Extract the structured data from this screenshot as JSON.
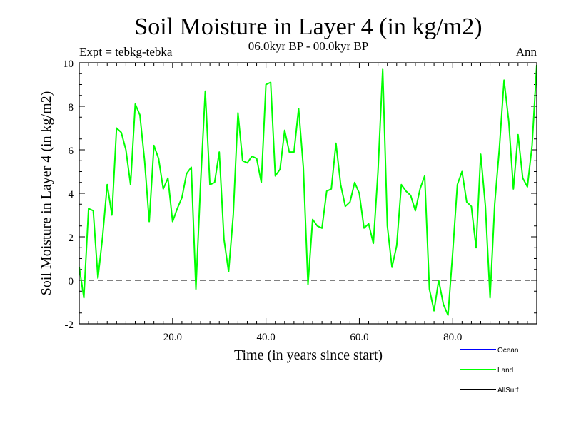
{
  "chart_data": {
    "type": "line",
    "title": "Soil Moisture in Layer 4 (in kg/m2)",
    "subtitle": "06.0kyr BP - 00.0kyr BP",
    "expt_label": "Expt = tebkg-tebka",
    "season_label": "Ann",
    "xlabel": "Time (in years since start)",
    "ylabel": "Soil Moisture in Layer 4 (in kg/m2)",
    "xlim": [
      0,
      98
    ],
    "ylim": [
      -2,
      10
    ],
    "x_ticks": [
      20,
      40,
      60,
      80
    ],
    "x_tick_labels": [
      "20.0",
      "40.0",
      "60.0",
      "80.0"
    ],
    "y_ticks": [
      -2,
      0,
      2,
      4,
      6,
      8,
      10
    ],
    "y_tick_labels": [
      "-2",
      "0",
      "2",
      "4",
      "6",
      "8",
      "10"
    ],
    "reference_line": 0,
    "legend": [
      {
        "name": "Ocean",
        "color": "#0000ff"
      },
      {
        "name": "Land",
        "color": "#00ff00"
      },
      {
        "name": "AllSurf",
        "color": "#000000"
      }
    ],
    "series": [
      {
        "name": "Land",
        "color": "#00ff00",
        "x": [
          0,
          1,
          2,
          3,
          4,
          5,
          6,
          7,
          8,
          9,
          10,
          11,
          12,
          13,
          14,
          15,
          16,
          17,
          18,
          19,
          20,
          21,
          22,
          23,
          24,
          25,
          26,
          27,
          28,
          29,
          30,
          31,
          32,
          33,
          34,
          35,
          36,
          37,
          38,
          39,
          40,
          41,
          42,
          43,
          44,
          45,
          46,
          47,
          48,
          49,
          50,
          51,
          52,
          53,
          54,
          55,
          56,
          57,
          58,
          59,
          60,
          61,
          62,
          63,
          64,
          65,
          66,
          67,
          68,
          69,
          70,
          71,
          72,
          73,
          74,
          75,
          76,
          77,
          78,
          79,
          80,
          81,
          82,
          83,
          84,
          85,
          86,
          87,
          88,
          89,
          90,
          91,
          92,
          93,
          94,
          95,
          96,
          97,
          98
        ],
        "values": [
          0.6,
          -0.8,
          3.3,
          3.2,
          0.1,
          2.0,
          4.4,
          3.0,
          7.0,
          6.8,
          6.0,
          4.4,
          8.1,
          7.6,
          5.5,
          2.7,
          6.2,
          5.6,
          4.2,
          4.7,
          2.7,
          3.3,
          3.8,
          4.9,
          5.2,
          -0.4,
          4.5,
          8.7,
          4.4,
          4.5,
          5.9,
          1.9,
          0.4,
          3.0,
          7.7,
          5.5,
          5.4,
          5.7,
          5.6,
          4.5,
          9.0,
          9.1,
          4.8,
          5.1,
          6.9,
          5.9,
          5.9,
          7.9,
          5.2,
          -0.2,
          2.8,
          2.5,
          2.4,
          4.1,
          4.2,
          6.3,
          4.4,
          3.4,
          3.6,
          4.5,
          4.0,
          2.4,
          2.6,
          1.7,
          5.0,
          9.7,
          2.5,
          0.6,
          1.6,
          4.4,
          4.1,
          3.9,
          3.2,
          4.2,
          4.8,
          -0.4,
          -1.4,
          0.0,
          -1.1,
          -1.6,
          1.3,
          4.4,
          5.0,
          3.6,
          3.4,
          1.5,
          5.8,
          3.4,
          -0.8,
          3.5,
          6.1,
          9.2,
          7.3,
          4.2,
          6.7,
          4.7,
          4.3,
          6.2,
          9.9
        ]
      }
    ]
  }
}
